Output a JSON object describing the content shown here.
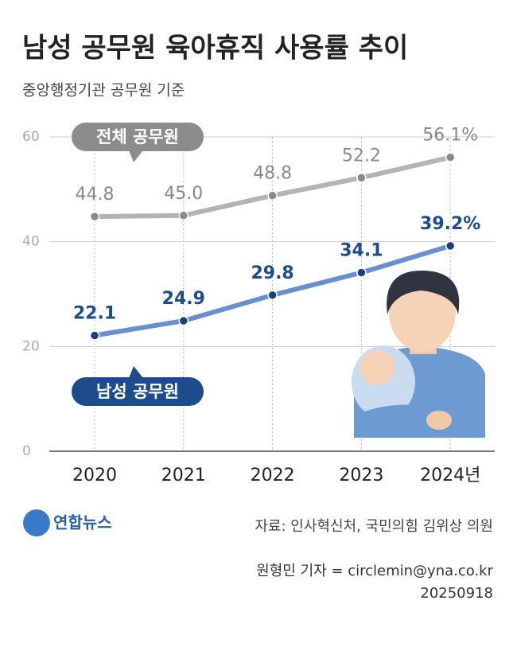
{
  "chart_data": {
    "type": "line",
    "title": "남성 공무원 육아휴직 사용률 추이",
    "subtitle": "중앙행정기관 공무원 기준",
    "categories": [
      "2020",
      "2021",
      "2022",
      "2023",
      "2024년"
    ],
    "series": [
      {
        "name": "전체 공무원",
        "color": "#b3b3b3",
        "values": [
          44.8,
          45.0,
          48.8,
          52.2,
          56.1
        ],
        "value_labels": [
          "44.8",
          "45.0",
          "48.8",
          "52.2",
          "56.1%"
        ]
      },
      {
        "name": "남성 공무원",
        "color": "#6a8fd0",
        "values": [
          22.1,
          24.9,
          29.8,
          34.1,
          39.2
        ],
        "value_labels": [
          "22.1",
          "24.9",
          "29.8",
          "34.1",
          "39.2%"
        ]
      }
    ],
    "ylim": [
      0,
      60
    ],
    "yticks": [
      0,
      20,
      40,
      60
    ],
    "grid": true,
    "source": "자료: 인사혁신처, 국민의힘 김위상 의원",
    "logo": "연합뉴스",
    "credit": "원형민 기자 = circlemin@yna.co.kr",
    "date": "20250918"
  }
}
